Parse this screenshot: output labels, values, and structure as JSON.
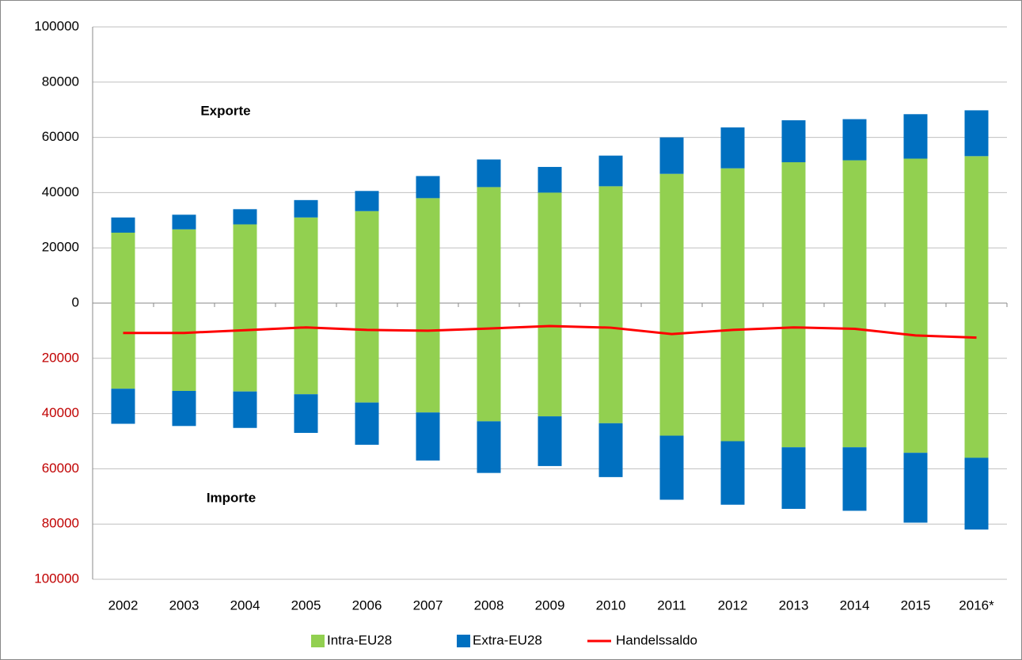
{
  "chart_data": {
    "type": "diverging_stacked_bar",
    "categories": [
      "2002",
      "2003",
      "2004",
      "2005",
      "2006",
      "2007",
      "2008",
      "2009",
      "2010",
      "2011",
      "2012",
      "2013",
      "2014",
      "2015",
      "2016*"
    ],
    "series": [
      {
        "name": "Intra-EU28",
        "color": "#92d050",
        "values": [
          25500,
          26700,
          28500,
          31000,
          33300,
          38000,
          42000,
          40000,
          42300,
          46800,
          48800,
          51000,
          51700,
          52300,
          53200
        ],
        "negative_values": [
          -31000,
          -31800,
          -32000,
          -33000,
          -36000,
          -39600,
          -42800,
          -41000,
          -43500,
          -48000,
          -50000,
          -52200,
          -52200,
          -54200,
          -56000
        ]
      },
      {
        "name": "Extra-EU28",
        "color": "#0070c0",
        "values": [
          5500,
          5300,
          5500,
          6300,
          7300,
          8000,
          10000,
          9300,
          11100,
          13200,
          14800,
          15200,
          14900,
          16100,
          16600
        ],
        "negative_values": [
          -12700,
          -12700,
          -13200,
          -14000,
          -15300,
          -17400,
          -18700,
          -18000,
          -19500,
          -23200,
          -23000,
          -22300,
          -23000,
          -25300,
          -26000
        ]
      },
      {
        "name": "Handelssaldo",
        "type": "line",
        "color": "#ff0000",
        "values": [
          -10800,
          -10800,
          -9800,
          -8800,
          -9700,
          -10000,
          -9200,
          -8300,
          -8900,
          -11200,
          -9700,
          -8800,
          -9300,
          -11700,
          -12500
        ]
      }
    ],
    "annotations": [
      "Exporte",
      "Importe"
    ],
    "ylim": [
      -100000,
      100000
    ],
    "yticks": [
      {
        "value": -100000,
        "label": "100000"
      },
      {
        "value": -80000,
        "label": "80000"
      },
      {
        "value": -60000,
        "label": "60000"
      },
      {
        "value": -40000,
        "label": "40000"
      },
      {
        "value": -20000,
        "label": "20000"
      },
      0,
      20000,
      40000,
      60000,
      80000,
      100000
    ],
    "negative_tick_color": "#c00000",
    "grid": true,
    "legend": "bottom"
  }
}
